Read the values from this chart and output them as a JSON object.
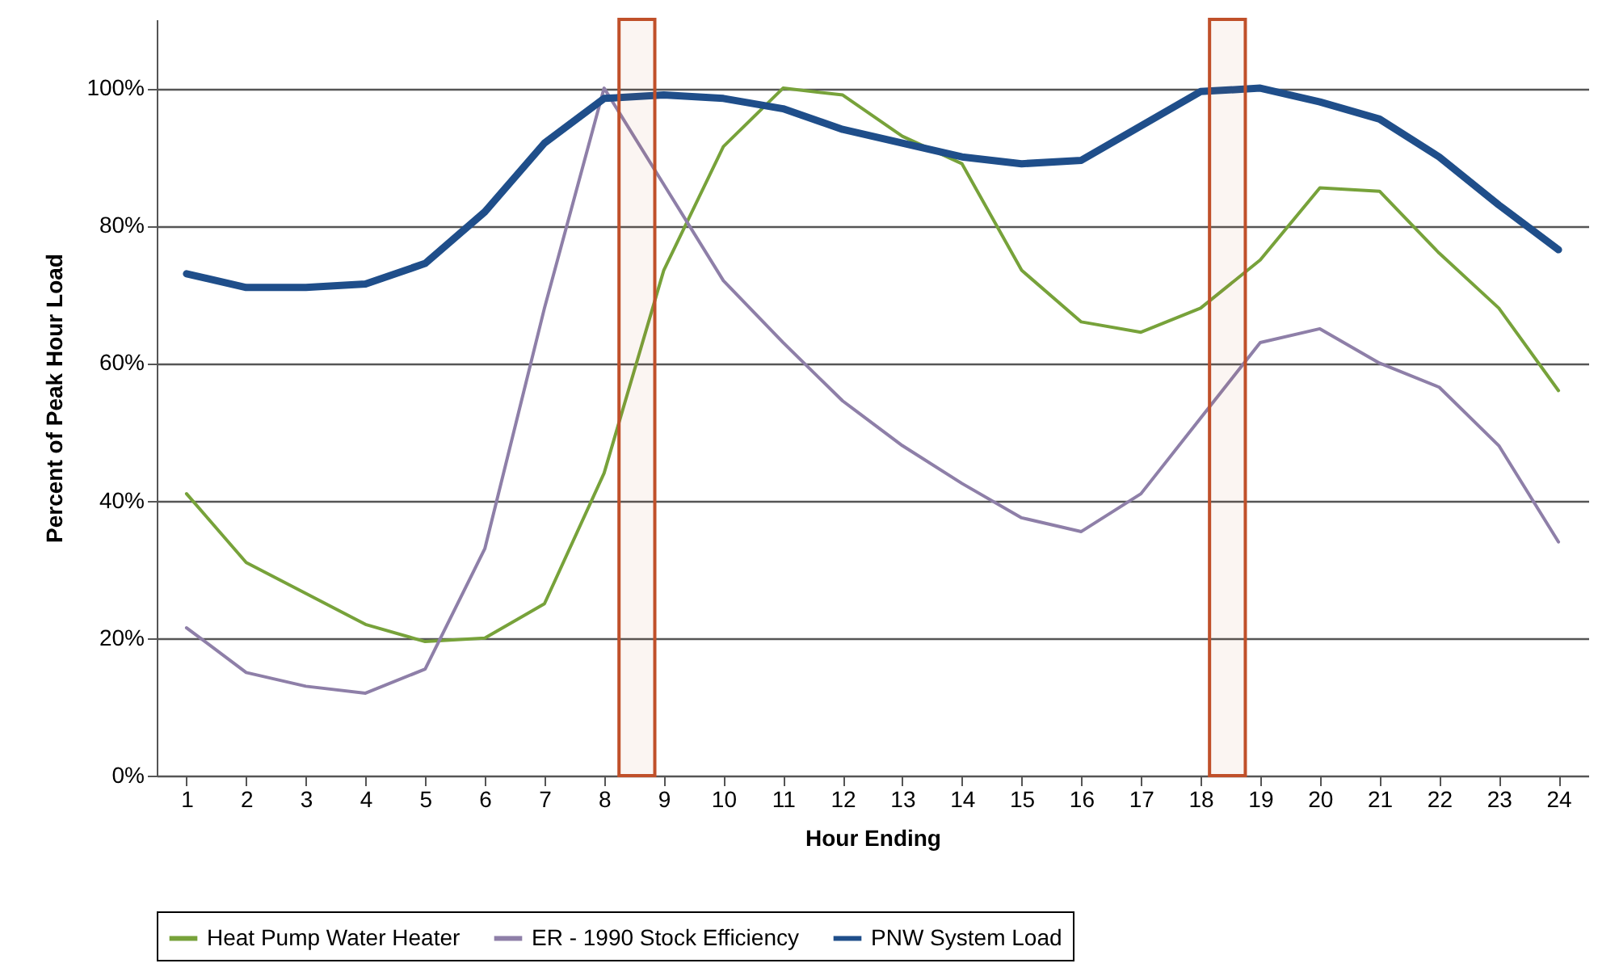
{
  "chart_data": {
    "type": "line",
    "xlabel": "Hour Ending",
    "ylabel": "Percent of Peak Hour Load",
    "x": [
      1,
      2,
      3,
      4,
      5,
      6,
      7,
      8,
      9,
      10,
      11,
      12,
      13,
      14,
      15,
      16,
      17,
      18,
      19,
      20,
      21,
      22,
      23,
      24
    ],
    "xlim": [
      0.5,
      24.5
    ],
    "xticks": [
      1,
      2,
      3,
      4,
      5,
      6,
      7,
      8,
      9,
      10,
      11,
      12,
      13,
      14,
      15,
      16,
      17,
      18,
      19,
      20,
      21,
      22,
      23,
      24
    ],
    "ylim": [
      0,
      110
    ],
    "yticks": [
      {
        "value": 0,
        "label": "0%"
      },
      {
        "value": 20,
        "label": "20%"
      },
      {
        "value": 40,
        "label": "40%"
      },
      {
        "value": 60,
        "label": "60%"
      },
      {
        "value": 80,
        "label": "80%"
      },
      {
        "value": 100,
        "label": "100%"
      }
    ],
    "grid": "y",
    "legend": "bottom",
    "marker": "none",
    "line_style": "solid",
    "bands": [
      {
        "axis": "x",
        "from": 8.25,
        "to": 8.85,
        "label": null,
        "color": "#c0502a"
      },
      {
        "axis": "x",
        "from": 18.15,
        "to": 18.75,
        "label": null,
        "color": "#c0502a"
      }
    ],
    "series": [
      {
        "name": "Heat Pump Water Heater",
        "color": "#77a23a",
        "values": [
          41,
          31,
          26.5,
          22,
          19.5,
          20,
          25,
          44,
          73.5,
          91.5,
          100,
          99,
          93,
          89,
          73.5,
          66,
          64.5,
          68,
          75,
          85.5,
          85,
          76,
          68,
          56
        ]
      },
      {
        "name": "ER - 1990 Stock Efficiency",
        "color": "#8e7fa8",
        "values": [
          21.5,
          15,
          13,
          12,
          15.5,
          33,
          68,
          100,
          86,
          72,
          63,
          54.5,
          48,
          42.5,
          37.5,
          35.5,
          41,
          52,
          63,
          65,
          60,
          56.5,
          48,
          34
        ]
      },
      {
        "name": "PNW System Load",
        "color": "#1f4e8a",
        "values": [
          73,
          71,
          71,
          71.5,
          74.5,
          82,
          92,
          98.5,
          99,
          98.5,
          97,
          94,
          92,
          90,
          89,
          89.5,
          94.5,
          99.5,
          100,
          98,
          95.5,
          90,
          83,
          76.5
        ]
      }
    ]
  }
}
